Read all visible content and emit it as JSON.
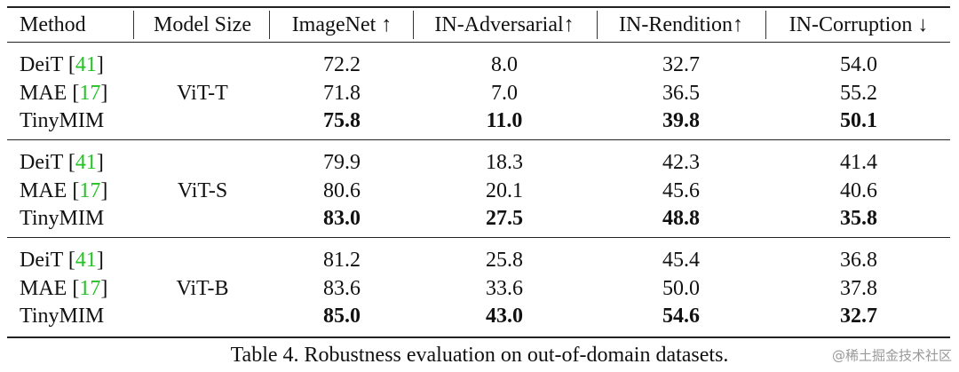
{
  "table": {
    "headers": [
      "Method",
      "Model Size",
      "ImageNet ↑",
      "IN-Adversarial↑",
      "IN-Rendition↑",
      "IN-Corruption ↓"
    ],
    "groups": [
      {
        "model_size": "ViT-T",
        "rows": [
          {
            "method": "DeiT",
            "citation": "[41]",
            "values": [
              "72.2",
              "8.0",
              "32.7",
              "54.0"
            ]
          },
          {
            "method": "MAE",
            "citation": "[17]",
            "values": [
              "71.8",
              "7.0",
              "36.5",
              "55.2"
            ]
          },
          {
            "method": "TinyMIM",
            "bold": true,
            "values": [
              "75.8",
              "11.0",
              "39.8",
              "50.1"
            ]
          }
        ]
      },
      {
        "model_size": "ViT-S",
        "rows": [
          {
            "method": "DeiT",
            "citation": "[41]",
            "values": [
              "79.9",
              "18.3",
              "42.3",
              "41.4"
            ]
          },
          {
            "method": "MAE",
            "citation": "[17]",
            "values": [
              "80.6",
              "20.1",
              "45.6",
              "40.6"
            ]
          },
          {
            "method": "TinyMIM",
            "bold": true,
            "values": [
              "83.0",
              "27.5",
              "48.8",
              "35.8"
            ]
          }
        ]
      },
      {
        "model_size": "ViT-B",
        "rows": [
          {
            "method": "DeiT",
            "citation": "[41]",
            "values": [
              "81.2",
              "25.8",
              "45.4",
              "36.8"
            ]
          },
          {
            "method": "MAE",
            "citation": "[17]",
            "values": [
              "83.6",
              "33.6",
              "50.0",
              "37.8"
            ]
          },
          {
            "method": "TinyMIM",
            "bold": true,
            "values": [
              "85.0",
              "43.0",
              "54.6",
              "32.7"
            ]
          }
        ]
      }
    ],
    "caption": "Table 4. Robustness evaluation on out-of-domain datasets.",
    "watermark": "@稀土掘金技术社区"
  }
}
